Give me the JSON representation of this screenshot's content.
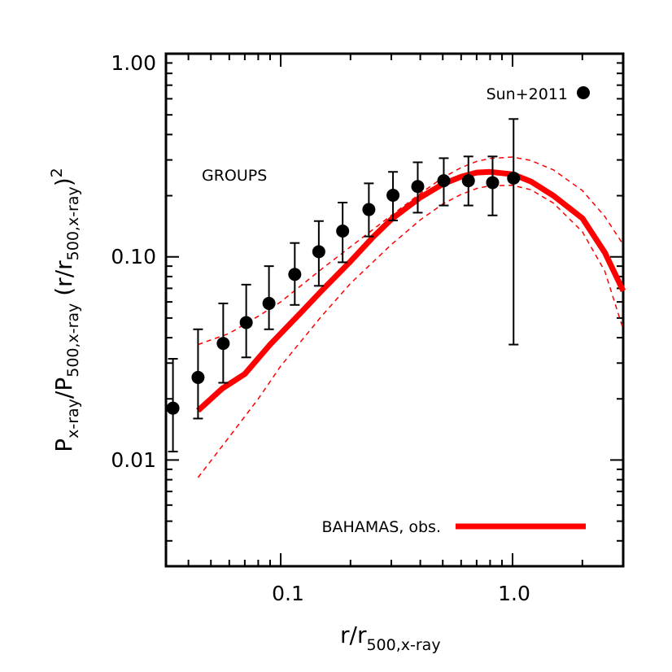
{
  "chart_data": {
    "type": "scatter",
    "title": "",
    "annotation": "GROUPS",
    "x_scale": "log",
    "y_scale": "log",
    "xlim": [
      0.032,
      3.0
    ],
    "ylim": [
      0.003,
      1.0
    ],
    "xticks": [
      {
        "value": 0.1,
        "label": "0.1"
      },
      {
        "value": 1.0,
        "label": "1.0"
      }
    ],
    "yticks": [
      {
        "value": 0.01,
        "label": "0.01"
      },
      {
        "value": 0.1,
        "label": "0.10"
      },
      {
        "value": 1.0,
        "label": "1.00"
      }
    ],
    "xlabel": {
      "main": "r/r",
      "sub": "500,x-ray"
    },
    "ylabel": {
      "p1": "P",
      "s1": "x-ray",
      "p2": "/P",
      "s2": "500,x-ray",
      "p3": " (r/r",
      "s3": "500,x-ray",
      "p4": ")",
      "sup": "2"
    },
    "grid": false,
    "series": [
      {
        "name": "Sun+2011",
        "kind": "points_with_errorbars",
        "color": "#000000",
        "x": [
          0.0343,
          0.044,
          0.0565,
          0.071,
          0.089,
          0.115,
          0.146,
          0.185,
          0.24,
          0.305,
          0.39,
          0.505,
          0.645,
          0.82,
          1.01
        ],
        "y": [
          0.018,
          0.0255,
          0.0375,
          0.0475,
          0.059,
          0.082,
          0.106,
          0.134,
          0.171,
          0.201,
          0.222,
          0.237,
          0.237,
          0.232,
          0.244
        ],
        "y_low": [
          0.011,
          0.016,
          0.024,
          0.032,
          0.044,
          0.058,
          0.072,
          0.094,
          0.126,
          0.151,
          0.165,
          0.179,
          0.179,
          0.16,
          0.037
        ],
        "y_high": [
          0.0315,
          0.044,
          0.059,
          0.073,
          0.09,
          0.117,
          0.15,
          0.185,
          0.23,
          0.262,
          0.292,
          0.306,
          0.312,
          0.312,
          0.477
        ]
      },
      {
        "name": "BAHAMAS, obs.",
        "kind": "line",
        "color": "#ff0000",
        "x": [
          0.044,
          0.056,
          0.07,
          0.09,
          0.12,
          0.15,
          0.2,
          0.25,
          0.3,
          0.4,
          0.5,
          0.6,
          0.7,
          0.8,
          1.0,
          1.2,
          1.5,
          2.0,
          2.5,
          3.0
        ],
        "y": [
          0.0175,
          0.0225,
          0.0265,
          0.037,
          0.052,
          0.068,
          0.095,
          0.125,
          0.153,
          0.196,
          0.228,
          0.248,
          0.26,
          0.262,
          0.255,
          0.235,
          0.2,
          0.155,
          0.105,
          0.068
        ]
      },
      {
        "name": "",
        "kind": "dashed_band_upper",
        "color": "#ff0000",
        "x": [
          0.044,
          0.06,
          0.08,
          0.1,
          0.15,
          0.2,
          0.3,
          0.4,
          0.5,
          0.6,
          0.7,
          0.8,
          1.0,
          1.2,
          1.5,
          2.0,
          2.5,
          3.0
        ],
        "y": [
          0.037,
          0.042,
          0.051,
          0.06,
          0.087,
          0.112,
          0.16,
          0.205,
          0.245,
          0.275,
          0.295,
          0.305,
          0.31,
          0.298,
          0.268,
          0.212,
          0.158,
          0.115
        ]
      },
      {
        "name": "",
        "kind": "dashed_band_lower",
        "color": "#ff0000",
        "x": [
          0.044,
          0.06,
          0.08,
          0.1,
          0.15,
          0.2,
          0.3,
          0.4,
          0.5,
          0.6,
          0.7,
          0.8,
          1.0,
          1.2,
          1.5,
          2.0,
          2.5,
          3.0
        ],
        "y": [
          0.0082,
          0.013,
          0.02,
          0.029,
          0.051,
          0.074,
          0.115,
          0.152,
          0.182,
          0.203,
          0.217,
          0.224,
          0.225,
          0.214,
          0.184,
          0.133,
          0.085,
          0.044
        ]
      }
    ],
    "legend": [
      {
        "label": "Sun+2011",
        "marker": "circle",
        "position": "top-right"
      },
      {
        "label": "BAHAMAS, obs.",
        "marker": "thick-line",
        "position": "bottom-right"
      }
    ]
  }
}
